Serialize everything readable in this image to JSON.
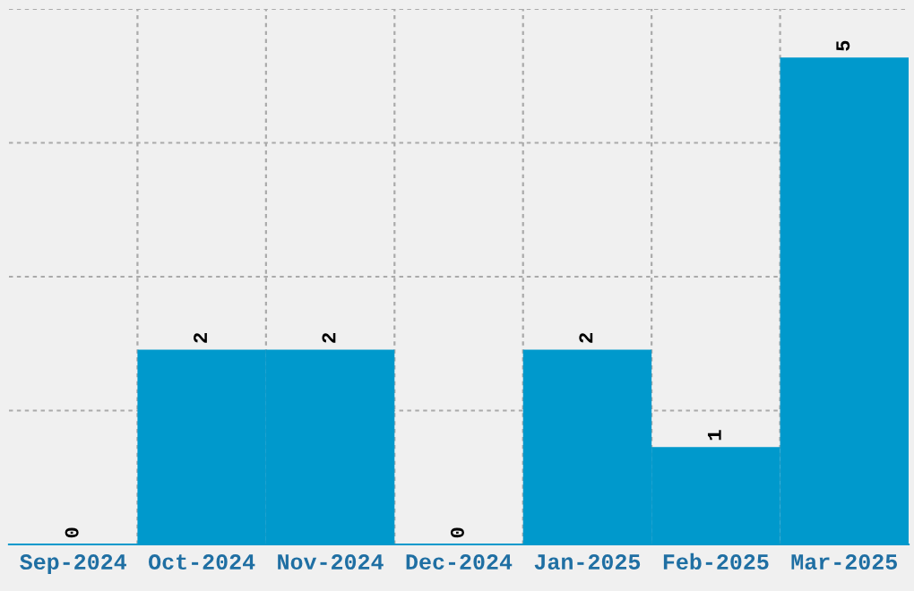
{
  "chart_data": {
    "type": "bar",
    "categories": [
      "Sep-2024",
      "Oct-2024",
      "Nov-2024",
      "Dec-2024",
      "Jan-2025",
      "Feb-2025",
      "Mar-2025"
    ],
    "values": [
      0,
      2,
      2,
      0,
      2,
      1,
      5
    ],
    "color": "#0099cc",
    "ylim": [
      0,
      5.5
    ],
    "yticks": [
      {
        "value": 1.375,
        "label": null
      },
      {
        "value": 2.75,
        "label": null
      },
      {
        "value": 4.125,
        "label": null
      },
      {
        "value": 5.5,
        "label": null
      }
    ],
    "grid": true,
    "data_labels": true,
    "tick_labels": "x"
  }
}
